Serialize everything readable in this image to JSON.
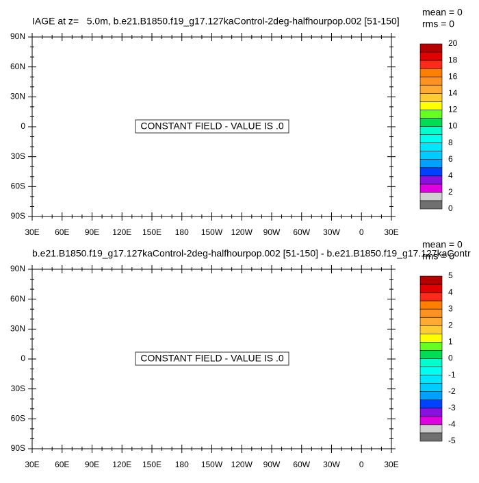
{
  "panels": [
    {
      "title": "IAGE at z=   5.0m, b.e21.B1850.f19_g17.127kaControl-2deg-halfhourpop.002 [51-150]",
      "mean_label": "mean = 0",
      "rms_label": "rms = 0",
      "lat_labels": [
        "90N",
        "60N",
        "30N",
        "0",
        "30S",
        "60S",
        "90S"
      ],
      "lon_labels": [
        "30E",
        "60E",
        "90E",
        "120E",
        "150E",
        "180",
        "150W",
        "120W",
        "90W",
        "60W",
        "30W",
        "0",
        "30E"
      ],
      "message": "CONSTANT FIELD - VALUE IS .0",
      "colorbar_labels": [
        "20",
        "18",
        "16",
        "14",
        "12",
        "10",
        "8",
        "6",
        "4",
        "2",
        "0"
      ]
    },
    {
      "title": "b.e21.B1850.f19_g17.127kaControl-2deg-halfhourpop.002 [51-150] - b.e21.B1850.f19_g17.127kaContr",
      "mean_label": "mean = 0",
      "rms_label": "rms = 0",
      "lat_labels": [
        "90N",
        "60N",
        "30N",
        "0",
        "30S",
        "60S",
        "90S"
      ],
      "lon_labels": [
        "30E",
        "60E",
        "90E",
        "120E",
        "150E",
        "180",
        "150W",
        "120W",
        "90W",
        "60W",
        "30W",
        "0",
        "30E"
      ],
      "message": "CONSTANT FIELD - VALUE IS .0",
      "colorbar_labels": [
        "5",
        "4",
        "3",
        "2",
        "1",
        "0",
        "-1",
        "-2",
        "-3",
        "-4",
        "-5"
      ]
    }
  ],
  "colorbar_colors": [
    "#b40000",
    "#e00000",
    "#ff2a1a",
    "#ff7f00",
    "#ff9222",
    "#ffaa33",
    "#ffcc33",
    "#ffff00",
    "#66ff22",
    "#00dd55",
    "#00ffcc",
    "#00ffee",
    "#00e6ff",
    "#00ccff",
    "#00a0ff",
    "#0040ff",
    "#8a10e0",
    "#e000e0",
    "#d0d0d0",
    "#707070"
  ]
}
